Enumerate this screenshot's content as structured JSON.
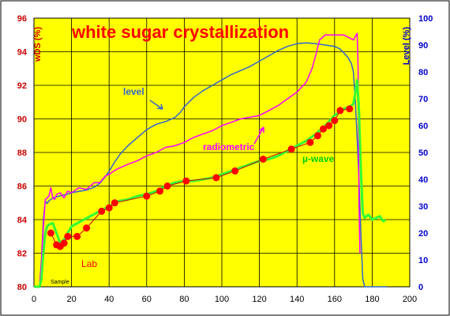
{
  "chart_data": {
    "type": "line",
    "title": "white sugar crystallization",
    "ylabel_left": "wDS (%)",
    "ylabel_right": "Level (%)",
    "xlabel": "",
    "xlim": [
      0,
      200
    ],
    "xticks": [
      0,
      20,
      40,
      60,
      80,
      100,
      120,
      140,
      160,
      180,
      200
    ],
    "ylim_left": [
      80,
      96
    ],
    "yticks_left": [
      80,
      82,
      84,
      86,
      88,
      90,
      92,
      94,
      96
    ],
    "ylim_right": [
      0,
      100
    ],
    "yticks_right": [
      0,
      10,
      20,
      30,
      40,
      50,
      60,
      70,
      80,
      90,
      100
    ],
    "grid": true,
    "annotations": [
      "level",
      "radiometric",
      "µ-wave",
      "Lab",
      "Sample"
    ],
    "series": [
      {
        "name": "level",
        "axis": "right",
        "values": [
          [
            0,
            0
          ],
          [
            3,
            0
          ],
          [
            4,
            10
          ],
          [
            5,
            25
          ],
          [
            6,
            32
          ],
          [
            7,
            31
          ],
          [
            8,
            32
          ],
          [
            10,
            33
          ],
          [
            12,
            33.5
          ],
          [
            15,
            34
          ],
          [
            18,
            34.5
          ],
          [
            20,
            35
          ],
          [
            24,
            35.5
          ],
          [
            28,
            36
          ],
          [
            32,
            37
          ],
          [
            35,
            38.5
          ],
          [
            38,
            41
          ],
          [
            40,
            43
          ],
          [
            43,
            46.5
          ],
          [
            46,
            49.5
          ],
          [
            50,
            52.5
          ],
          [
            55,
            55.5
          ],
          [
            60,
            58.5
          ],
          [
            65,
            60.5
          ],
          [
            70,
            61.5
          ],
          [
            75,
            63
          ],
          [
            78,
            65
          ],
          [
            80,
            67
          ],
          [
            85,
            70.5
          ],
          [
            90,
            73
          ],
          [
            95,
            75
          ],
          [
            100,
            77
          ],
          [
            105,
            79
          ],
          [
            110,
            80.5
          ],
          [
            115,
            82
          ],
          [
            120,
            84
          ],
          [
            125,
            86
          ],
          [
            130,
            88
          ],
          [
            135,
            89.5
          ],
          [
            140,
            90.5
          ],
          [
            145,
            90.8
          ],
          [
            150,
            90.5
          ],
          [
            155,
            90
          ],
          [
            160,
            89.5
          ],
          [
            163,
            88.5
          ],
          [
            165,
            87
          ],
          [
            167,
            85.5
          ],
          [
            169,
            83
          ],
          [
            170,
            80
          ],
          [
            171,
            70
          ],
          [
            172,
            55
          ],
          [
            173,
            40
          ],
          [
            174,
            20
          ],
          [
            175,
            3
          ],
          [
            176,
            0
          ],
          [
            188,
            0
          ]
        ]
      },
      {
        "name": "radiometric",
        "axis": "left",
        "values": [
          [
            0,
            80
          ],
          [
            3,
            80
          ],
          [
            4,
            81.5
          ],
          [
            5,
            83.5
          ],
          [
            6,
            85.2
          ],
          [
            7,
            85.3
          ],
          [
            8,
            85.4
          ],
          [
            9,
            85.9
          ],
          [
            10,
            85.3
          ],
          [
            11,
            85.2
          ],
          [
            12,
            85.5
          ],
          [
            14,
            85.6
          ],
          [
            16,
            85.3
          ],
          [
            18,
            85.7
          ],
          [
            20,
            85.6
          ],
          [
            24,
            85.9
          ],
          [
            28,
            85.8
          ],
          [
            32,
            86.2
          ],
          [
            35,
            86.2
          ],
          [
            38,
            86.6
          ],
          [
            40,
            86.7
          ],
          [
            44,
            87
          ],
          [
            50,
            87.3
          ],
          [
            55,
            87.5
          ],
          [
            60,
            87.8
          ],
          [
            65,
            88
          ],
          [
            70,
            88.3
          ],
          [
            75,
            88.4
          ],
          [
            80,
            88.6
          ],
          [
            85,
            88.9
          ],
          [
            90,
            89.1
          ],
          [
            95,
            89.3
          ],
          [
            100,
            89.6
          ],
          [
            105,
            89.8
          ],
          [
            110,
            90
          ],
          [
            115,
            90.1
          ],
          [
            120,
            90.2
          ],
          [
            125,
            90.5
          ],
          [
            130,
            90.8
          ],
          [
            135,
            91.2
          ],
          [
            140,
            91.6
          ],
          [
            145,
            92.2
          ],
          [
            148,
            93
          ],
          [
            150,
            93.8
          ],
          [
            152,
            94.7
          ],
          [
            155,
            95
          ],
          [
            160,
            95
          ],
          [
            165,
            95
          ],
          [
            170,
            94.7
          ],
          [
            171,
            94.9
          ],
          [
            172,
            95.1
          ],
          [
            172.5,
            93
          ],
          [
            173,
            85
          ],
          [
            173.5,
            82
          ]
        ]
      },
      {
        "name": "µ-wave",
        "axis": "left",
        "values": [
          [
            0,
            80
          ],
          [
            3,
            80
          ],
          [
            4,
            80.5
          ],
          [
            5,
            82
          ],
          [
            6,
            83.2
          ],
          [
            7,
            83.6
          ],
          [
            8,
            83.7
          ],
          [
            10,
            83.8
          ],
          [
            12,
            83.2
          ],
          [
            14,
            82.6
          ],
          [
            16,
            82.8
          ],
          [
            18,
            83.2
          ],
          [
            20,
            83.6
          ],
          [
            25,
            83.9
          ],
          [
            30,
            84.2
          ],
          [
            35,
            84.5
          ],
          [
            40,
            84.8
          ],
          [
            45,
            85.1
          ],
          [
            50,
            85.2
          ],
          [
            55,
            85.4
          ],
          [
            60,
            85.5
          ],
          [
            65,
            85.7
          ],
          [
            70,
            86
          ],
          [
            75,
            86.2
          ],
          [
            80,
            86.3
          ],
          [
            85,
            86.3
          ],
          [
            90,
            86.4
          ],
          [
            95,
            86.5
          ],
          [
            100,
            86.7
          ],
          [
            105,
            86.9
          ],
          [
            110,
            87.1
          ],
          [
            115,
            87.3
          ],
          [
            120,
            87.5
          ],
          [
            125,
            87.6
          ],
          [
            130,
            87.8
          ],
          [
            135,
            88.1
          ],
          [
            140,
            88.4
          ],
          [
            145,
            88.7
          ],
          [
            150,
            89.1
          ],
          [
            155,
            89.6
          ],
          [
            160,
            90.2
          ],
          [
            165,
            90.6
          ],
          [
            168,
            90.7
          ],
          [
            170,
            90.9
          ],
          [
            171,
            91.5
          ],
          [
            172,
            92.3
          ],
          [
            173,
            90.5
          ],
          [
            174,
            87
          ],
          [
            175,
            84.4
          ],
          [
            176,
            84.1
          ],
          [
            178,
            84.3
          ],
          [
            180,
            84
          ],
          [
            182,
            84.1
          ],
          [
            184,
            84.2
          ],
          [
            186,
            83.9
          ],
          [
            187,
            84
          ]
        ]
      },
      {
        "name": "Lab",
        "axis": "left",
        "values": [
          [
            9,
            83.2
          ],
          [
            12,
            82.5
          ],
          [
            14,
            82.4
          ],
          [
            16,
            82.6
          ],
          [
            18,
            83
          ],
          [
            23,
            83
          ],
          [
            28,
            83.5
          ],
          [
            36,
            84.5
          ],
          [
            40,
            84.7
          ],
          [
            43,
            85
          ],
          [
            60,
            85.4
          ],
          [
            67,
            85.7
          ],
          [
            71,
            86
          ],
          [
            81,
            86.3
          ],
          [
            97,
            86.5
          ],
          [
            107,
            86.9
          ],
          [
            122,
            87.6
          ],
          [
            137,
            88.2
          ],
          [
            147,
            88.6
          ],
          [
            151,
            89
          ],
          [
            154,
            89.4
          ],
          [
            157,
            89.6
          ],
          [
            160,
            89.9
          ],
          [
            163,
            90.5
          ],
          [
            168,
            90.6
          ]
        ]
      }
    ]
  },
  "labels": {
    "title": "white sugar crystallization",
    "ylabel_left": "wDS (%)",
    "ylabel_right": "Level (%)",
    "level": "level",
    "radiometric": "radiometric",
    "uwave": "µ-wave",
    "lab": "Lab",
    "sample": "Sample"
  },
  "colors": {
    "plot_background": "#ffff00",
    "page_background": "#ffffff",
    "grid": "#000000",
    "level": "#3366cc",
    "radiometric": "#ff00ff",
    "uwave": "#33ff33",
    "lab_marker": "#ff0000",
    "lab_line": "#cc0000",
    "title": "#ff0000",
    "left_axis_ticks": "#cc0000",
    "right_axis_ticks": "#0000cc"
  }
}
